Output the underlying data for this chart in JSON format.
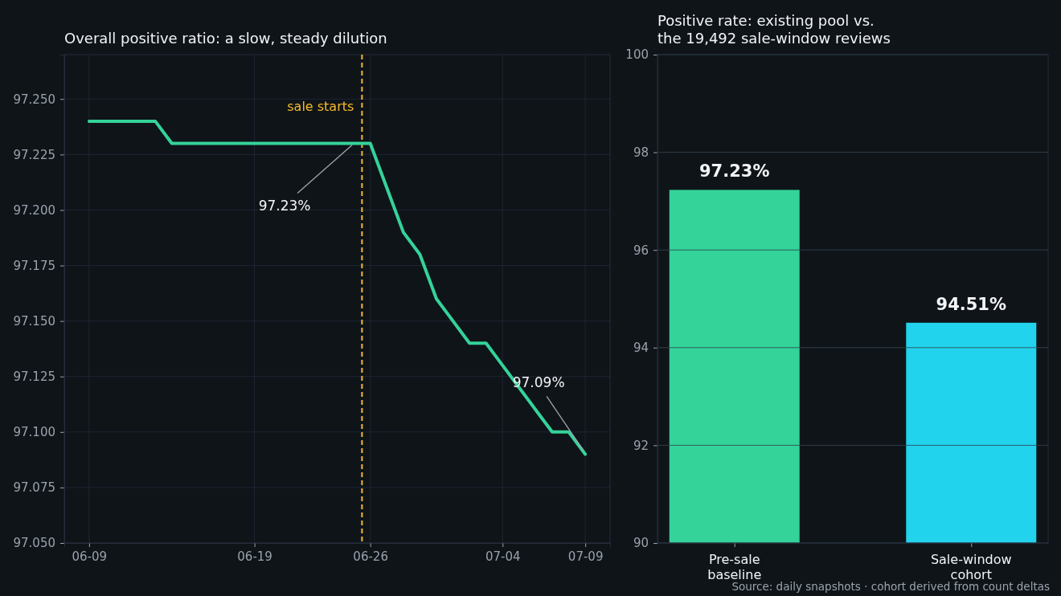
{
  "chart_data": [
    {
      "type": "line",
      "title": "Overall positive ratio: a slow, steady dilution",
      "x": [
        "--06-09",
        "--06-10",
        "--06-11",
        "--06-12",
        "--06-13",
        "--06-14",
        "--06-15",
        "--06-16",
        "--06-17",
        "--06-18",
        "--06-19",
        "--06-20",
        "--06-21",
        "--06-22",
        "--06-23",
        "--06-24",
        "--06-25",
        "--06-26",
        "--06-27",
        "--06-28",
        "--06-29",
        "--06-30",
        "--07-01",
        "--07-02",
        "--07-03",
        "--07-04",
        "--07-05",
        "--07-06",
        "--07-07",
        "--07-08",
        "--07-09"
      ],
      "series": [
        {
          "color": "#34d399",
          "values": [
            97.24,
            97.24,
            97.24,
            97.24,
            97.24,
            97.23,
            97.23,
            97.23,
            97.23,
            97.23,
            97.23,
            97.23,
            97.23,
            97.23,
            97.23,
            97.23,
            97.23,
            97.23,
            97.21,
            97.19,
            97.18,
            97.16,
            97.15,
            97.14,
            97.14,
            97.13,
            97.12,
            97.11,
            97.1,
            97.1,
            97.09
          ]
        }
      ],
      "xlim": [
        "--06-07T12:00",
        "--07-10T12:00"
      ],
      "xticks": [
        {
          "value": "--06-09",
          "label": "06-09"
        },
        {
          "value": "--06-19",
          "label": "06-19"
        },
        {
          "value": "--06-26",
          "label": "06-26"
        },
        {
          "value": "--07-04",
          "label": "07-04"
        },
        {
          "value": "--07-09",
          "label": "07-09"
        }
      ],
      "ylim": [
        97.05,
        97.27
      ],
      "yticks": [
        {
          "value": 97.05,
          "label": "97.050"
        },
        {
          "value": 97.075,
          "label": "97.075"
        },
        {
          "value": 97.1,
          "label": "97.100"
        },
        {
          "value": 97.125,
          "label": "97.125"
        },
        {
          "value": 97.15,
          "label": "97.150"
        },
        {
          "value": 97.175,
          "label": "97.175"
        },
        {
          "value": 97.2,
          "label": "97.200"
        },
        {
          "value": 97.225,
          "label": "97.225"
        },
        {
          "value": 97.25,
          "label": "97.250"
        }
      ],
      "grid": true,
      "ref_lines": [
        {
          "axis": "x",
          "value": "--06-25T12:00",
          "label": "sale starts",
          "color": "#f5b92a",
          "line_style": "dashed"
        }
      ],
      "annotations": [
        {
          "text": "97.23%",
          "x": "--06-25",
          "y": 97.23
        },
        {
          "text": "97.09%",
          "x": "--07-09",
          "y": 97.09
        }
      ]
    },
    {
      "type": "bar",
      "title": "Positive rate: existing pool vs.\nthe 19,492 sale-window reviews",
      "categories": [
        "Pre-sale baseline",
        "Sale-window cohort"
      ],
      "values": [
        97.23,
        94.51
      ],
      "colors": [
        "#34d399",
        "#22d3ee"
      ],
      "value_labels": [
        "97.23%",
        "94.51%"
      ],
      "ylim": [
        90,
        100
      ],
      "yticks": [
        90,
        92,
        94,
        96,
        98,
        100
      ],
      "grid": "y",
      "annotations": [
        "Source: daily snapshots · cohort derived from count deltas"
      ]
    }
  ]
}
